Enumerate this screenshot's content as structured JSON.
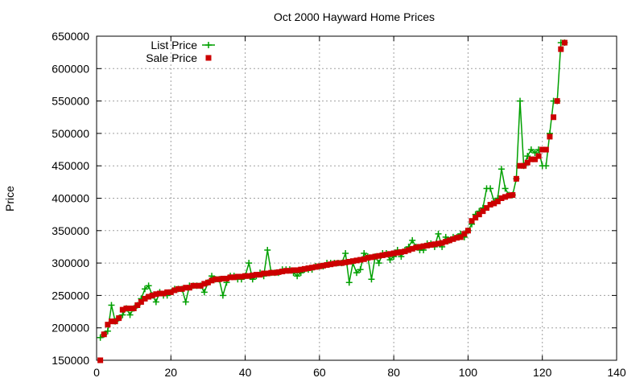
{
  "chart_data": {
    "type": "line",
    "title": "Oct 2000 Hayward Home Prices",
    "xlabel": "",
    "ylabel": "Price",
    "xlim": [
      0,
      140
    ],
    "ylim": [
      150000,
      650000
    ],
    "xticks": [
      0,
      20,
      40,
      60,
      80,
      100,
      120,
      140
    ],
    "yticks": [
      150000,
      200000,
      250000,
      300000,
      350000,
      400000,
      450000,
      500000,
      550000,
      600000,
      650000
    ],
    "grid": true,
    "legend_position": "top-left",
    "series": [
      {
        "name": "List Price",
        "style": "line+plus",
        "color": "#00a000",
        "x": [
          1,
          2,
          3,
          4,
          5,
          6,
          7,
          8,
          9,
          10,
          11,
          12,
          13,
          14,
          15,
          16,
          17,
          18,
          19,
          20,
          21,
          22,
          23,
          24,
          25,
          26,
          27,
          28,
          29,
          30,
          31,
          32,
          33,
          34,
          35,
          36,
          37,
          38,
          39,
          40,
          41,
          42,
          43,
          44,
          45,
          46,
          47,
          48,
          49,
          50,
          51,
          52,
          53,
          54,
          55,
          56,
          57,
          58,
          59,
          60,
          61,
          62,
          63,
          64,
          65,
          66,
          67,
          68,
          69,
          70,
          71,
          72,
          73,
          74,
          75,
          76,
          77,
          78,
          79,
          80,
          81,
          82,
          83,
          84,
          85,
          86,
          87,
          88,
          89,
          90,
          91,
          92,
          93,
          94,
          95,
          96,
          97,
          98,
          99,
          100,
          101,
          102,
          103,
          104,
          105,
          106,
          107,
          108,
          109,
          110,
          111,
          112,
          113,
          114,
          115,
          116,
          117,
          118,
          119,
          120,
          121,
          122,
          123,
          124,
          125,
          126
        ],
        "values": [
          185000,
          190000,
          195000,
          235000,
          210000,
          215000,
          220000,
          230000,
          220000,
          230000,
          235000,
          245000,
          260000,
          265000,
          250000,
          240000,
          255000,
          250000,
          250000,
          255000,
          260000,
          260000,
          260000,
          240000,
          265000,
          265000,
          265000,
          265000,
          255000,
          270000,
          280000,
          275000,
          275000,
          250000,
          270000,
          280000,
          280000,
          275000,
          275000,
          280000,
          300000,
          275000,
          280000,
          285000,
          280000,
          320000,
          285000,
          285000,
          285000,
          290000,
          290000,
          290000,
          285000,
          280000,
          285000,
          290000,
          290000,
          290000,
          295000,
          295000,
          295000,
          300000,
          300000,
          300000,
          300000,
          300000,
          315000,
          270000,
          300000,
          285000,
          290000,
          315000,
          310000,
          275000,
          310000,
          300000,
          315000,
          315000,
          305000,
          310000,
          320000,
          310000,
          320000,
          325000,
          335000,
          325000,
          320000,
          320000,
          330000,
          330000,
          325000,
          345000,
          325000,
          340000,
          335000,
          340000,
          340000,
          345000,
          340000,
          350000,
          360000,
          375000,
          380000,
          385000,
          415000,
          415000,
          395000,
          400000,
          445000,
          415000,
          405000,
          405000,
          430000,
          550000,
          450000,
          465000,
          475000,
          470000,
          475000,
          450000,
          450000,
          500000,
          550000,
          550000,
          640000,
          640000
        ]
      },
      {
        "name": "Sale Price",
        "style": "points",
        "color": "#cc0000",
        "x": [
          1,
          2,
          3,
          4,
          5,
          6,
          7,
          8,
          9,
          10,
          11,
          12,
          13,
          14,
          15,
          16,
          17,
          18,
          19,
          20,
          21,
          22,
          23,
          24,
          25,
          26,
          27,
          28,
          29,
          30,
          31,
          32,
          33,
          34,
          35,
          36,
          37,
          38,
          39,
          40,
          41,
          42,
          43,
          44,
          45,
          46,
          47,
          48,
          49,
          50,
          51,
          52,
          53,
          54,
          55,
          56,
          57,
          58,
          59,
          60,
          61,
          62,
          63,
          64,
          65,
          66,
          67,
          68,
          69,
          70,
          71,
          72,
          73,
          74,
          75,
          76,
          77,
          78,
          79,
          80,
          81,
          82,
          83,
          84,
          85,
          86,
          87,
          88,
          89,
          90,
          91,
          92,
          93,
          94,
          95,
          96,
          97,
          98,
          99,
          100,
          101,
          102,
          103,
          104,
          105,
          106,
          107,
          108,
          109,
          110,
          111,
          112,
          113,
          114,
          115,
          116,
          117,
          118,
          119,
          120,
          121,
          122,
          123,
          124,
          125,
          126
        ],
        "values": [
          150000,
          190000,
          205000,
          210000,
          210000,
          215000,
          228000,
          230000,
          230000,
          230000,
          235000,
          240000,
          245000,
          248000,
          250000,
          252000,
          253000,
          253000,
          255000,
          255000,
          258000,
          260000,
          260000,
          262000,
          262000,
          265000,
          265000,
          265000,
          268000,
          270000,
          273000,
          275000,
          275000,
          276000,
          276000,
          278000,
          278000,
          279000,
          279000,
          280000,
          280000,
          281000,
          282000,
          282000,
          284000,
          284000,
          285000,
          285000,
          286000,
          287000,
          288000,
          288000,
          289000,
          289000,
          290000,
          291000,
          292000,
          293000,
          294000,
          295000,
          296000,
          297000,
          298000,
          299000,
          300000,
          300000,
          301000,
          302000,
          303000,
          304000,
          305000,
          306000,
          308000,
          309000,
          310000,
          311000,
          312000,
          313000,
          314000,
          315000,
          316000,
          317000,
          318000,
          320000,
          322000,
          324000,
          325000,
          326000,
          327000,
          328000,
          329000,
          330000,
          331000,
          333000,
          335000,
          337000,
          339000,
          340000,
          345000,
          350000,
          365000,
          370000,
          375000,
          380000,
          385000,
          390000,
          392000,
          395000,
          400000,
          402000,
          404000,
          405000,
          430000,
          450000,
          450000,
          455000,
          460000,
          460000,
          465000,
          475000,
          475000,
          495000,
          525000,
          550000,
          630000,
          640000
        ]
      }
    ]
  }
}
